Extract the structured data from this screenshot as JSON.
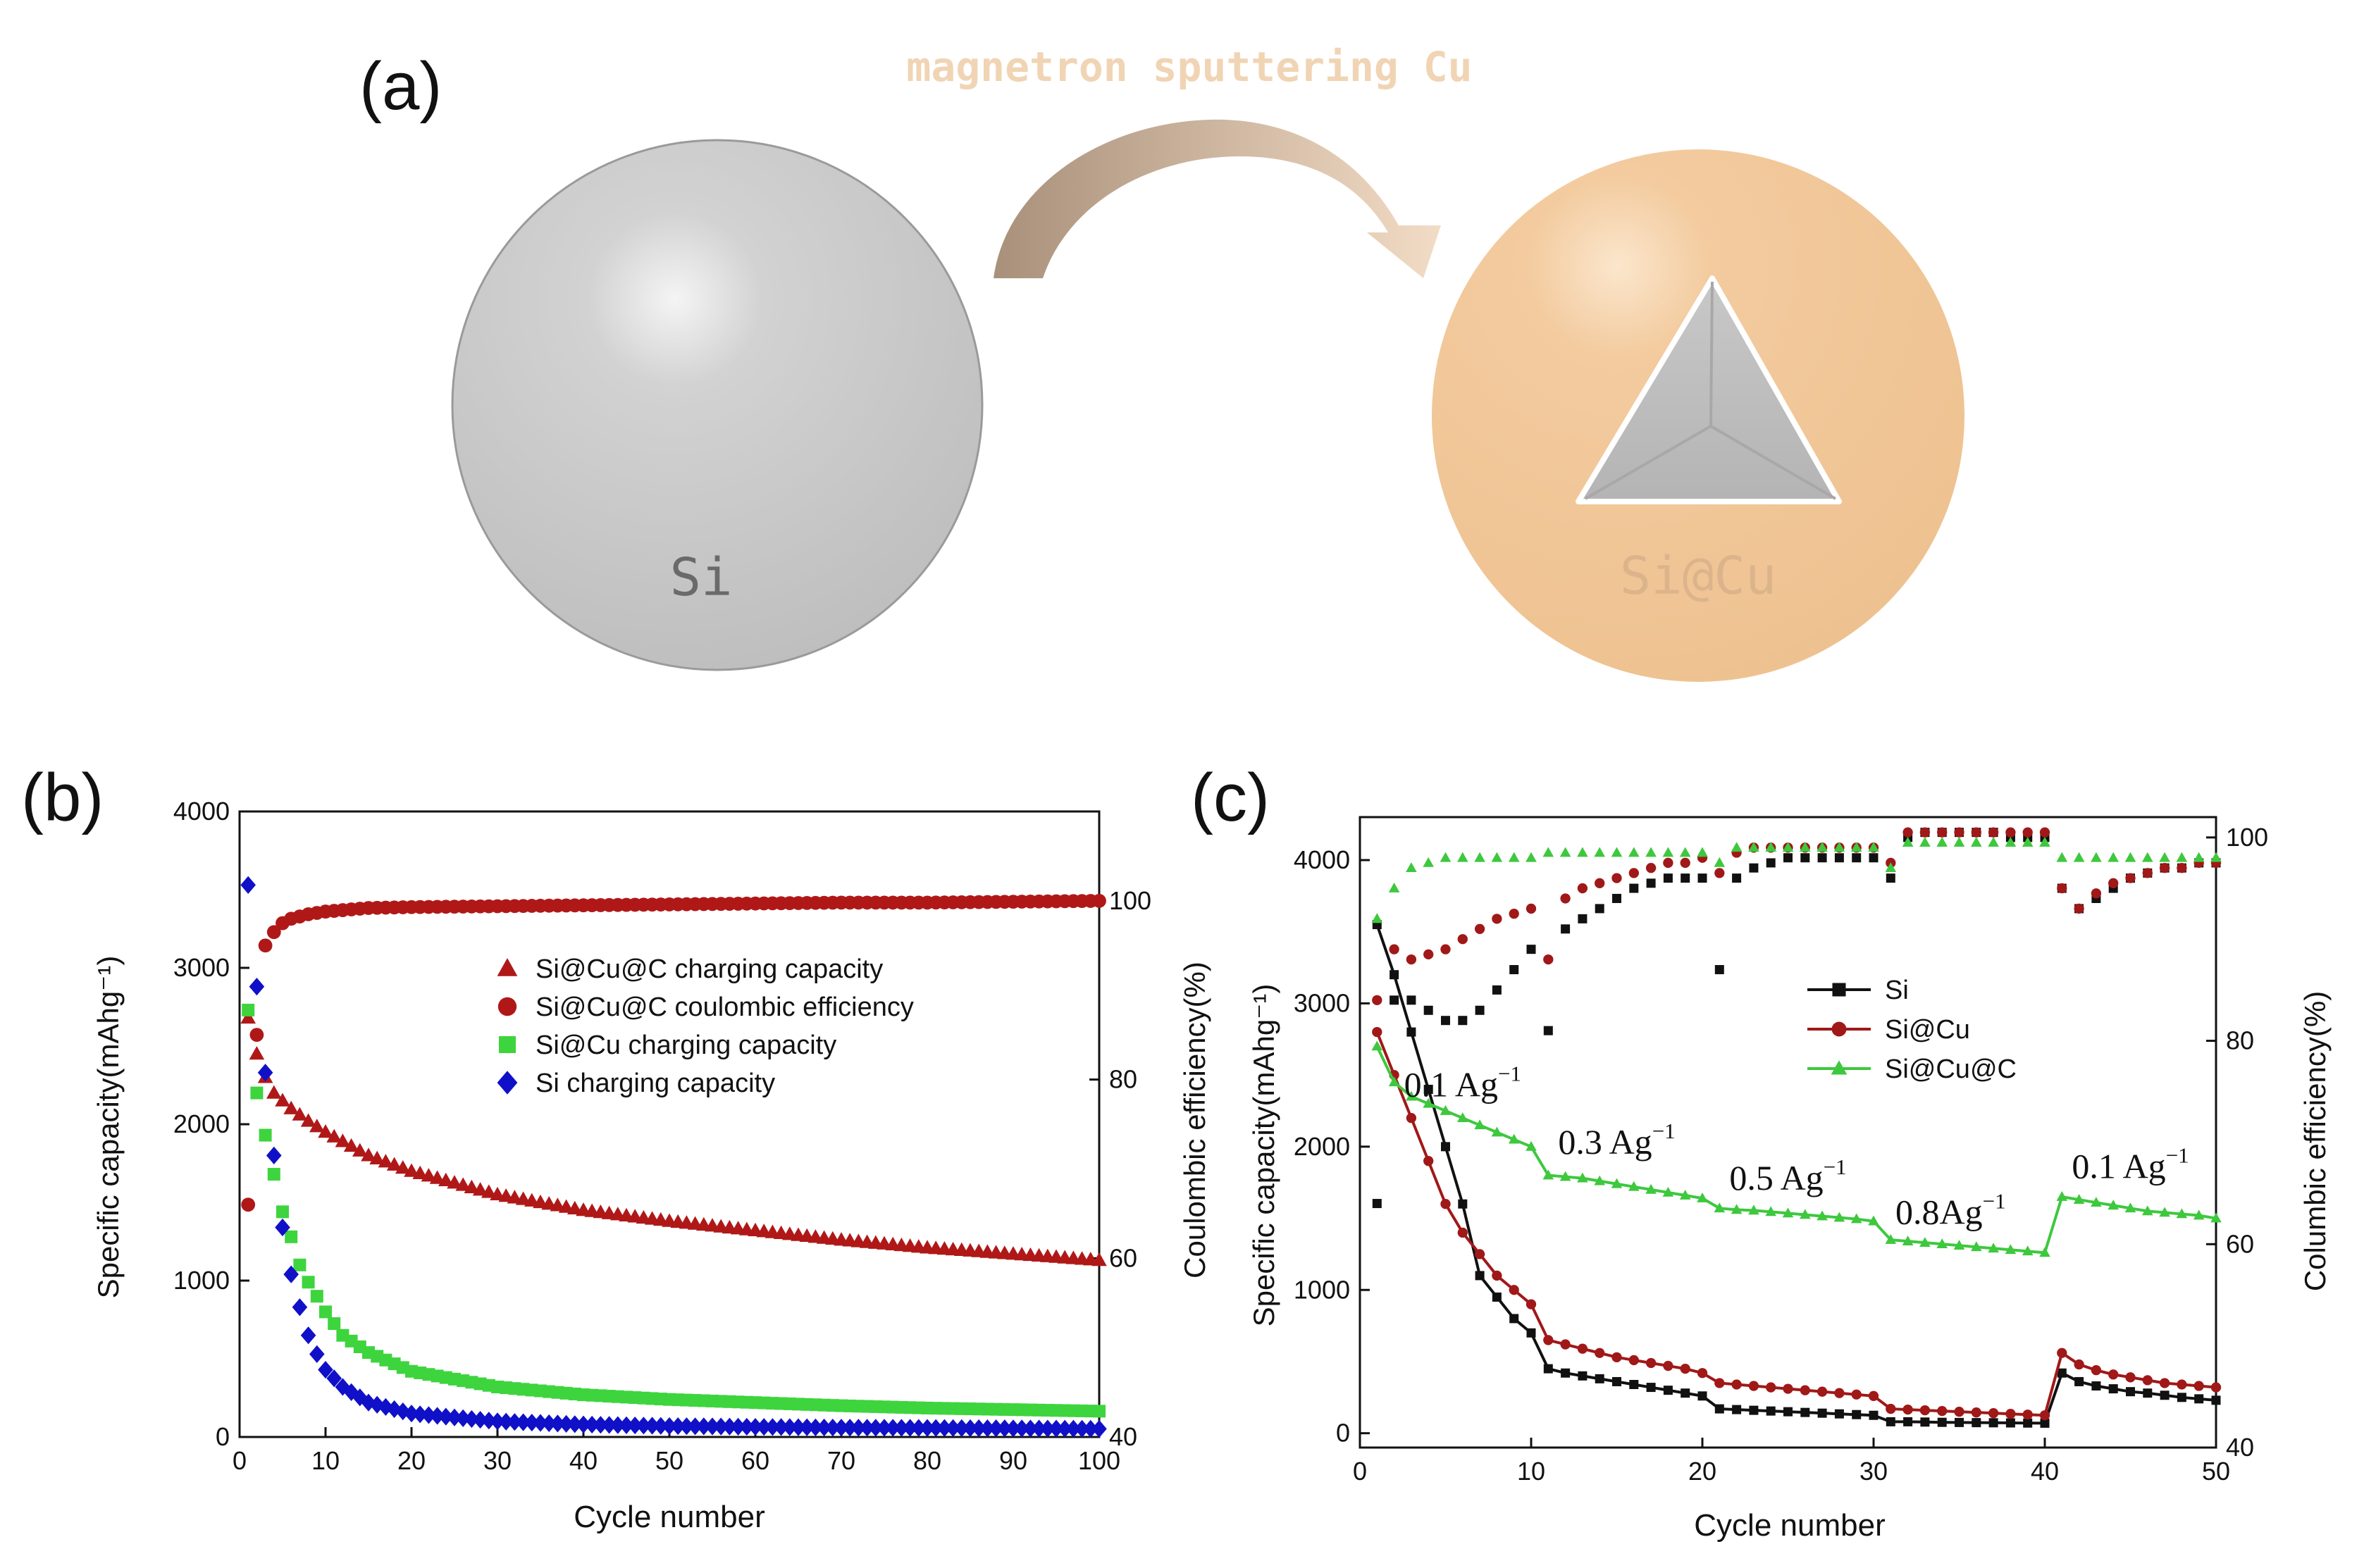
{
  "panels": {
    "a_label": "(a)",
    "b_label": "(b)",
    "c_label": "(c)"
  },
  "schematic": {
    "arrow_text": "magnetron sputtering Cu",
    "left_sphere_label": "Si",
    "right_sphere_label": "Si@Cu",
    "colors": {
      "si_sphere": "#c8c8c8",
      "cu_sphere": "#f3c99c",
      "arrow_start": "#a8907a",
      "arrow_end": "#f5dcc4",
      "arrow_text": "#f0d4b4"
    }
  },
  "chart_data": [
    {
      "id": "b",
      "type": "scatter",
      "xlabel": "Cycle number",
      "ylabel_left": "Specific capacity(mAhg⁻¹)",
      "ylabel_right": "Coulombic efficiency(%)",
      "xlim": [
        0,
        100
      ],
      "ylim_left": [
        0,
        4000
      ],
      "ylim_right": [
        40,
        110
      ],
      "xticks": [
        0,
        10,
        20,
        30,
        40,
        50,
        60,
        70,
        80,
        90,
        100
      ],
      "yticks_left": [
        0,
        1000,
        2000,
        3000,
        4000
      ],
      "yticks_right": [
        40,
        60,
        80,
        100
      ],
      "legend_position": "center",
      "series": [
        {
          "name": "Si@Cu@C charging capacity",
          "marker": "triangle",
          "color": "#b01818",
          "axis": "left",
          "x": [
            1,
            2,
            3,
            4,
            5,
            6,
            8,
            10,
            15,
            20,
            30,
            40,
            50,
            60,
            70,
            80,
            90,
            100
          ],
          "y": [
            2680,
            2450,
            2300,
            2200,
            2150,
            2100,
            2020,
            1950,
            1800,
            1700,
            1550,
            1450,
            1380,
            1320,
            1260,
            1210,
            1170,
            1130
          ]
        },
        {
          "name": "Si@Cu@C coulombic efficiency",
          "marker": "circle",
          "color": "#b01818",
          "axis": "right",
          "x": [
            1,
            2,
            3,
            4,
            5,
            6,
            8,
            10,
            15,
            20,
            30,
            40,
            50,
            60,
            70,
            80,
            90,
            100
          ],
          "y": [
            66,
            85,
            95,
            96.5,
            97.5,
            98,
            98.5,
            98.8,
            99.2,
            99.3,
            99.4,
            99.5,
            99.6,
            99.7,
            99.8,
            99.8,
            99.9,
            100
          ]
        },
        {
          "name": "Si@Cu charging capacity",
          "marker": "square",
          "color": "#3ed43e",
          "axis": "left",
          "x": [
            1,
            2,
            3,
            4,
            5,
            6,
            7,
            8,
            9,
            10,
            12,
            15,
            20,
            30,
            40,
            50,
            60,
            70,
            80,
            90,
            100
          ],
          "y": [
            2730,
            2200,
            1930,
            1680,
            1440,
            1280,
            1100,
            990,
            900,
            800,
            650,
            540,
            420,
            320,
            270,
            240,
            220,
            200,
            185,
            175,
            165
          ]
        },
        {
          "name": "Si charging capacity",
          "marker": "diamond",
          "color": "#1010c8",
          "axis": "left",
          "x": [
            1,
            2,
            3,
            4,
            5,
            6,
            7,
            8,
            9,
            10,
            12,
            15,
            20,
            30,
            40,
            50,
            60,
            70,
            80,
            90,
            100
          ],
          "y": [
            3530,
            2880,
            2330,
            1800,
            1340,
            1040,
            830,
            650,
            530,
            430,
            320,
            220,
            150,
            100,
            80,
            70,
            65,
            60,
            58,
            55,
            52
          ]
        }
      ]
    },
    {
      "id": "c",
      "type": "line",
      "xlabel": "Cycle number",
      "ylabel_left": "Specific capacity(mAhg⁻¹)",
      "ylabel_right": "Columbic efficiency(%)",
      "xlim": [
        0,
        50
      ],
      "ylim_left": [
        -100,
        4300
      ],
      "ylim_right": [
        40,
        102
      ],
      "xticks": [
        0,
        10,
        20,
        30,
        40,
        50
      ],
      "yticks_left": [
        0,
        1000,
        2000,
        3000,
        4000
      ],
      "yticks_right": [
        40,
        60,
        80,
        100
      ],
      "legend_position": "right",
      "rate_annotations": [
        {
          "text": "0.1 Ag⁻¹",
          "x": 6,
          "y": 2350
        },
        {
          "text": "0.3 Ag⁻¹",
          "x": 15,
          "y": 1950
        },
        {
          "text": "0.5 Ag⁻¹",
          "x": 25,
          "y": 1700
        },
        {
          "text": "0.8Ag⁻¹",
          "x": 34.5,
          "y": 1460
        },
        {
          "text": "0.1 Ag⁻¹",
          "x": 45,
          "y": 1780
        }
      ],
      "series": [
        {
          "name": "Si",
          "marker": "square",
          "color": "#111111",
          "axis": "left",
          "x": [
            1,
            2,
            3,
            4,
            5,
            6,
            7,
            8,
            9,
            10,
            11,
            12,
            13,
            14,
            15,
            16,
            17,
            18,
            19,
            20,
            21,
            22,
            23,
            24,
            25,
            26,
            27,
            28,
            29,
            30,
            31,
            32,
            33,
            34,
            35,
            36,
            37,
            38,
            39,
            40,
            41,
            42,
            43,
            44,
            45,
            46,
            47,
            48,
            49,
            50
          ],
          "y": [
            3550,
            3200,
            2800,
            2400,
            2000,
            1600,
            1100,
            950,
            800,
            700,
            450,
            420,
            400,
            380,
            360,
            340,
            320,
            300,
            280,
            260,
            170,
            165,
            160,
            155,
            150,
            145,
            140,
            135,
            130,
            125,
            80,
            80,
            78,
            76,
            75,
            74,
            73,
            72,
            71,
            70,
            420,
            360,
            330,
            310,
            290,
            280,
            265,
            250,
            240,
            230
          ]
        },
        {
          "name": "Si@Cu",
          "marker": "circle",
          "color": "#a01818",
          "axis": "left",
          "x": [
            1,
            2,
            3,
            4,
            5,
            6,
            7,
            8,
            9,
            10,
            11,
            12,
            13,
            14,
            15,
            16,
            17,
            18,
            19,
            20,
            21,
            22,
            23,
            24,
            25,
            26,
            27,
            28,
            29,
            30,
            31,
            32,
            33,
            34,
            35,
            36,
            37,
            38,
            39,
            40,
            41,
            42,
            43,
            44,
            45,
            46,
            47,
            48,
            49,
            50
          ],
          "y": [
            2800,
            2500,
            2200,
            1900,
            1600,
            1400,
            1250,
            1100,
            1000,
            900,
            650,
            620,
            590,
            560,
            530,
            510,
            490,
            470,
            450,
            420,
            350,
            340,
            330,
            320,
            310,
            300,
            290,
            280,
            270,
            260,
            170,
            165,
            160,
            155,
            150,
            145,
            140,
            135,
            130,
            125,
            560,
            480,
            440,
            410,
            390,
            370,
            350,
            340,
            330,
            320
          ]
        },
        {
          "name": "Si@Cu@C",
          "marker": "triangle",
          "color": "#3ec83e",
          "axis": "left",
          "x": [
            1,
            2,
            3,
            4,
            5,
            6,
            7,
            8,
            9,
            10,
            11,
            12,
            13,
            14,
            15,
            16,
            17,
            18,
            19,
            20,
            21,
            22,
            23,
            24,
            25,
            26,
            27,
            28,
            29,
            30,
            31,
            32,
            33,
            34,
            35,
            36,
            37,
            38,
            39,
            40,
            41,
            42,
            43,
            44,
            45,
            46,
            47,
            48,
            49,
            50
          ],
          "y": [
            2700,
            2450,
            2350,
            2300,
            2250,
            2200,
            2150,
            2100,
            2050,
            2000,
            1800,
            1790,
            1780,
            1760,
            1740,
            1720,
            1700,
            1680,
            1660,
            1640,
            1570,
            1560,
            1555,
            1545,
            1535,
            1525,
            1515,
            1505,
            1495,
            1480,
            1350,
            1340,
            1330,
            1320,
            1310,
            1300,
            1290,
            1280,
            1270,
            1260,
            1650,
            1630,
            1610,
            1590,
            1570,
            1550,
            1540,
            1530,
            1520,
            1500
          ]
        },
        {
          "name": "Si coulombic efficiency",
          "marker": "square",
          "color": "#111111",
          "axis": "right",
          "legend": false,
          "x": [
            1,
            2,
            3,
            4,
            5,
            6,
            7,
            8,
            9,
            10,
            11,
            12,
            13,
            14,
            15,
            16,
            17,
            18,
            19,
            20,
            21,
            22,
            23,
            24,
            25,
            26,
            27,
            28,
            29,
            30,
            31,
            32,
            33,
            34,
            35,
            36,
            37,
            38,
            39,
            40,
            41,
            42,
            43,
            44,
            45,
            46,
            47,
            48,
            49,
            50
          ],
          "y": [
            64,
            84,
            84,
            83,
            82,
            82,
            83,
            85,
            87,
            89,
            81,
            91,
            92,
            93,
            94,
            95,
            95.5,
            96,
            96,
            96,
            87,
            96,
            97,
            97.5,
            98,
            98,
            98,
            98,
            98,
            98,
            96,
            100,
            100.5,
            100.5,
            100.5,
            100.5,
            100.5,
            100,
            100,
            100,
            95,
            93,
            94,
            95,
            96,
            96.5,
            97,
            97,
            97.5,
            97.5
          ]
        },
        {
          "name": "Si@Cu coulombic efficiency",
          "marker": "circle",
          "color": "#a01818",
          "axis": "right",
          "legend": false,
          "x": [
            1,
            2,
            3,
            4,
            5,
            6,
            7,
            8,
            9,
            10,
            11,
            12,
            13,
            14,
            15,
            16,
            17,
            18,
            19,
            20,
            21,
            22,
            23,
            24,
            25,
            26,
            27,
            28,
            29,
            30,
            31,
            32,
            33,
            34,
            35,
            36,
            37,
            38,
            39,
            40,
            41,
            42,
            43,
            44,
            45,
            46,
            47,
            48,
            49,
            50
          ],
          "y": [
            84,
            89,
            88,
            88.5,
            89,
            90,
            91,
            92,
            92.5,
            93,
            88,
            94,
            95,
            95.5,
            96,
            96.5,
            97,
            97.5,
            97.5,
            98,
            96.5,
            98.5,
            99,
            99,
            99,
            99,
            99,
            99,
            99,
            99,
            97.5,
            100.5,
            100.5,
            100.5,
            100.5,
            100.5,
            100.5,
            100.5,
            100.5,
            100.5,
            95,
            93,
            94.5,
            95.5,
            96,
            96.5,
            97,
            97,
            97.5,
            97.5
          ]
        },
        {
          "name": "Si@Cu@C coulombic efficiency",
          "marker": "triangle",
          "color": "#3ec83e",
          "axis": "right",
          "legend": false,
          "x": [
            1,
            2,
            3,
            4,
            5,
            6,
            7,
            8,
            9,
            10,
            11,
            12,
            13,
            14,
            15,
            16,
            17,
            18,
            19,
            20,
            21,
            22,
            23,
            24,
            25,
            26,
            27,
            28,
            29,
            30,
            31,
            32,
            33,
            34,
            35,
            36,
            37,
            38,
            39,
            40,
            41,
            42,
            43,
            44,
            45,
            46,
            47,
            48,
            49,
            50
          ],
          "y": [
            92,
            95,
            97,
            97.5,
            98,
            98,
            98,
            98,
            98,
            98,
            98.5,
            98.5,
            98.5,
            98.5,
            98.5,
            98.5,
            98.5,
            98.5,
            98.5,
            98.5,
            97.5,
            99,
            99,
            99,
            99,
            99,
            99,
            99,
            99,
            99,
            97,
            99.5,
            99.5,
            99.5,
            99.5,
            99.5,
            99.5,
            99.5,
            99.5,
            99.5,
            98,
            98,
            98,
            98,
            98,
            98,
            98,
            98,
            98,
            98
          ]
        }
      ]
    }
  ]
}
